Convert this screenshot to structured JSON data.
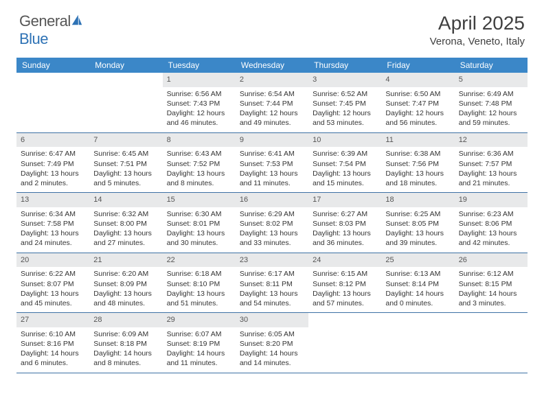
{
  "logo": {
    "part1": "General",
    "part2": "Blue"
  },
  "title": {
    "month": "April 2025",
    "location": "Verona, Veneto, Italy"
  },
  "colors": {
    "header_bg": "#3b87c8",
    "header_text": "#ffffff",
    "daynum_bg": "#e8e9ea",
    "daynum_text": "#555555",
    "border": "#3b6fa3",
    "body_text": "#333333",
    "logo_gray": "#555555",
    "logo_blue": "#2e72b5"
  },
  "day_names": [
    "Sunday",
    "Monday",
    "Tuesday",
    "Wednesday",
    "Thursday",
    "Friday",
    "Saturday"
  ],
  "weeks": [
    [
      null,
      null,
      {
        "n": "1",
        "sr": "6:56 AM",
        "ss": "7:43 PM",
        "dl": "12 hours and 46 minutes."
      },
      {
        "n": "2",
        "sr": "6:54 AM",
        "ss": "7:44 PM",
        "dl": "12 hours and 49 minutes."
      },
      {
        "n": "3",
        "sr": "6:52 AM",
        "ss": "7:45 PM",
        "dl": "12 hours and 53 minutes."
      },
      {
        "n": "4",
        "sr": "6:50 AM",
        "ss": "7:47 PM",
        "dl": "12 hours and 56 minutes."
      },
      {
        "n": "5",
        "sr": "6:49 AM",
        "ss": "7:48 PM",
        "dl": "12 hours and 59 minutes."
      }
    ],
    [
      {
        "n": "6",
        "sr": "6:47 AM",
        "ss": "7:49 PM",
        "dl": "13 hours and 2 minutes."
      },
      {
        "n": "7",
        "sr": "6:45 AM",
        "ss": "7:51 PM",
        "dl": "13 hours and 5 minutes."
      },
      {
        "n": "8",
        "sr": "6:43 AM",
        "ss": "7:52 PM",
        "dl": "13 hours and 8 minutes."
      },
      {
        "n": "9",
        "sr": "6:41 AM",
        "ss": "7:53 PM",
        "dl": "13 hours and 11 minutes."
      },
      {
        "n": "10",
        "sr": "6:39 AM",
        "ss": "7:54 PM",
        "dl": "13 hours and 15 minutes."
      },
      {
        "n": "11",
        "sr": "6:38 AM",
        "ss": "7:56 PM",
        "dl": "13 hours and 18 minutes."
      },
      {
        "n": "12",
        "sr": "6:36 AM",
        "ss": "7:57 PM",
        "dl": "13 hours and 21 minutes."
      }
    ],
    [
      {
        "n": "13",
        "sr": "6:34 AM",
        "ss": "7:58 PM",
        "dl": "13 hours and 24 minutes."
      },
      {
        "n": "14",
        "sr": "6:32 AM",
        "ss": "8:00 PM",
        "dl": "13 hours and 27 minutes."
      },
      {
        "n": "15",
        "sr": "6:30 AM",
        "ss": "8:01 PM",
        "dl": "13 hours and 30 minutes."
      },
      {
        "n": "16",
        "sr": "6:29 AM",
        "ss": "8:02 PM",
        "dl": "13 hours and 33 minutes."
      },
      {
        "n": "17",
        "sr": "6:27 AM",
        "ss": "8:03 PM",
        "dl": "13 hours and 36 minutes."
      },
      {
        "n": "18",
        "sr": "6:25 AM",
        "ss": "8:05 PM",
        "dl": "13 hours and 39 minutes."
      },
      {
        "n": "19",
        "sr": "6:23 AM",
        "ss": "8:06 PM",
        "dl": "13 hours and 42 minutes."
      }
    ],
    [
      {
        "n": "20",
        "sr": "6:22 AM",
        "ss": "8:07 PM",
        "dl": "13 hours and 45 minutes."
      },
      {
        "n": "21",
        "sr": "6:20 AM",
        "ss": "8:09 PM",
        "dl": "13 hours and 48 minutes."
      },
      {
        "n": "22",
        "sr": "6:18 AM",
        "ss": "8:10 PM",
        "dl": "13 hours and 51 minutes."
      },
      {
        "n": "23",
        "sr": "6:17 AM",
        "ss": "8:11 PM",
        "dl": "13 hours and 54 minutes."
      },
      {
        "n": "24",
        "sr": "6:15 AM",
        "ss": "8:12 PM",
        "dl": "13 hours and 57 minutes."
      },
      {
        "n": "25",
        "sr": "6:13 AM",
        "ss": "8:14 PM",
        "dl": "14 hours and 0 minutes."
      },
      {
        "n": "26",
        "sr": "6:12 AM",
        "ss": "8:15 PM",
        "dl": "14 hours and 3 minutes."
      }
    ],
    [
      {
        "n": "27",
        "sr": "6:10 AM",
        "ss": "8:16 PM",
        "dl": "14 hours and 6 minutes."
      },
      {
        "n": "28",
        "sr": "6:09 AM",
        "ss": "8:18 PM",
        "dl": "14 hours and 8 minutes."
      },
      {
        "n": "29",
        "sr": "6:07 AM",
        "ss": "8:19 PM",
        "dl": "14 hours and 11 minutes."
      },
      {
        "n": "30",
        "sr": "6:05 AM",
        "ss": "8:20 PM",
        "dl": "14 hours and 14 minutes."
      },
      null,
      null,
      null
    ]
  ],
  "labels": {
    "sunrise": "Sunrise: ",
    "sunset": "Sunset: ",
    "daylight": "Daylight: "
  }
}
